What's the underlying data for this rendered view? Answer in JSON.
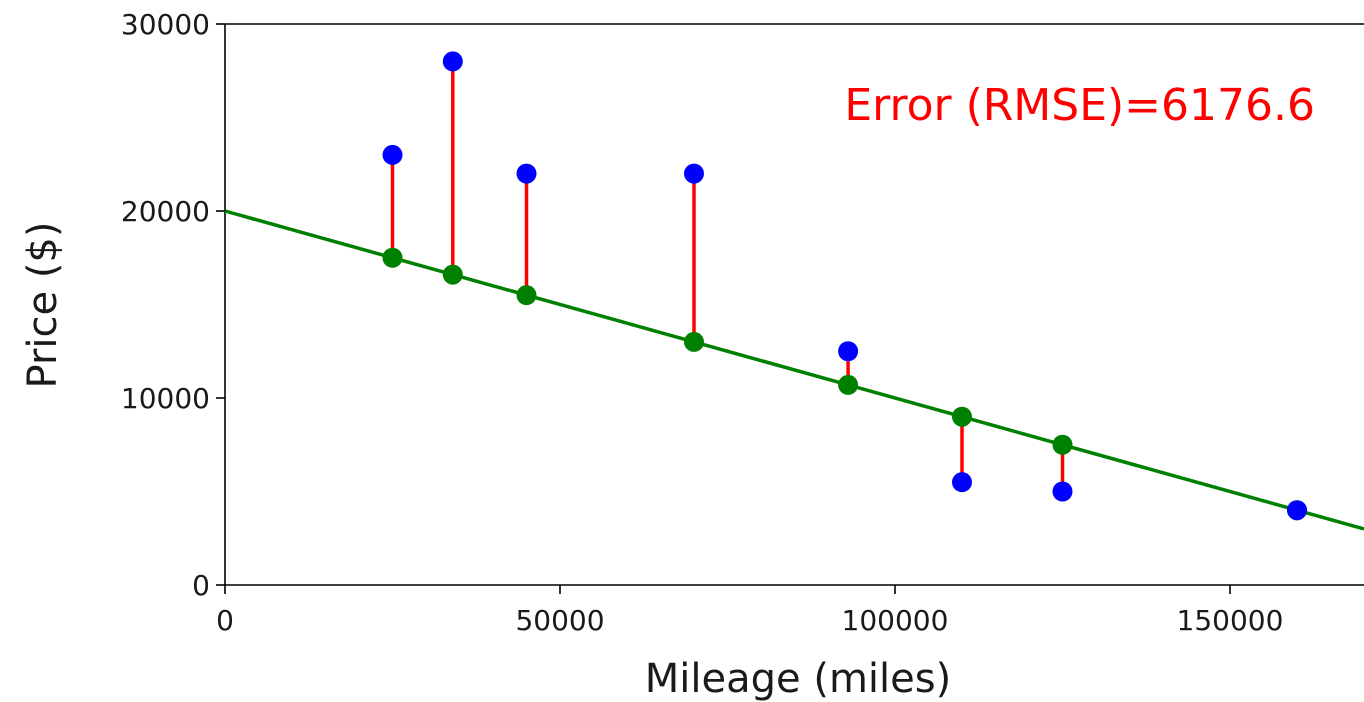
{
  "chart_data": {
    "type": "scatter",
    "title": "",
    "xlabel": "Mileage (miles)",
    "ylabel": "Price ($)",
    "xlim": [
      0,
      170000
    ],
    "ylim": [
      0,
      30000
    ],
    "x_ticks": [
      0,
      50000,
      100000,
      150000
    ],
    "x_tick_labels": [
      "0",
      "50000",
      "100000",
      "150000"
    ],
    "y_ticks": [
      0,
      10000,
      20000,
      30000
    ],
    "y_tick_labels": [
      "0",
      "10000",
      "20000",
      "30000"
    ],
    "grid": false,
    "annotation": "Error (RMSE)=6176.6",
    "fit_line": {
      "intercept": 20000,
      "slope": -0.1,
      "color": "#008000"
    },
    "observed": {
      "color": "#0000ff",
      "points": [
        {
          "x": 25000,
          "y": 23000
        },
        {
          "x": 34000,
          "y": 28000
        },
        {
          "x": 45000,
          "y": 22000
        },
        {
          "x": 70000,
          "y": 22000
        },
        {
          "x": 93000,
          "y": 12500
        },
        {
          "x": 110000,
          "y": 5500
        },
        {
          "x": 125000,
          "y": 5000
        },
        {
          "x": 160000,
          "y": 4000
        }
      ]
    },
    "predicted": {
      "color": "#008000",
      "points": [
        {
          "x": 25000,
          "y": 17500
        },
        {
          "x": 34000,
          "y": 16600
        },
        {
          "x": 45000,
          "y": 15500
        },
        {
          "x": 70000,
          "y": 13000
        },
        {
          "x": 93000,
          "y": 10700
        },
        {
          "x": 110000,
          "y": 9000
        },
        {
          "x": 125000,
          "y": 7500
        },
        {
          "x": 160000,
          "y": 4000
        }
      ]
    },
    "residual_color": "#ff0000"
  }
}
